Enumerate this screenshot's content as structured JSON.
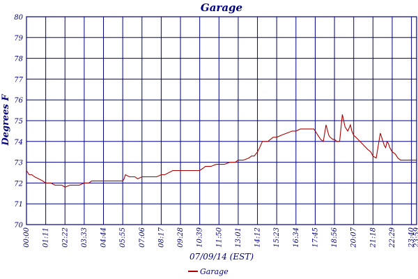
{
  "chart_data": {
    "type": "line",
    "title": "Garage",
    "xlabel": "07/09/14 (EST)",
    "ylabel": "Degrees F",
    "ylim": [
      70,
      80
    ],
    "yticks": [
      "70",
      "71",
      "72",
      "73",
      "74",
      "75",
      "76",
      "77",
      "78",
      "79",
      "80"
    ],
    "xticks": [
      "00:00",
      "01:11",
      "02:22",
      "03:33",
      "04:44",
      "05:55",
      "07:06",
      "08:17",
      "09:28",
      "10:39",
      "11:50",
      "13:01",
      "14:12",
      "15:23",
      "16:34",
      "17:45",
      "18:56",
      "20:07",
      "21:18",
      "22:29",
      "23:40",
      "23:59"
    ],
    "grid": true,
    "legend_position": "bottom-center",
    "colors": {
      "series": "#aa0000",
      "axes": "#000080"
    },
    "series": [
      {
        "name": "Garage",
        "x": [
          "00:00",
          "00:10",
          "00:20",
          "00:30",
          "00:45",
          "01:00",
          "01:11",
          "01:30",
          "01:45",
          "02:00",
          "02:10",
          "02:22",
          "02:40",
          "03:00",
          "03:15",
          "03:33",
          "03:50",
          "04:00",
          "04:20",
          "04:44",
          "05:00",
          "05:20",
          "05:40",
          "05:55",
          "06:00",
          "06:05",
          "06:20",
          "06:40",
          "06:50",
          "07:06",
          "07:20",
          "07:40",
          "08:00",
          "08:17",
          "08:30",
          "08:45",
          "09:00",
          "09:10",
          "09:28",
          "09:40",
          "10:00",
          "10:20",
          "10:39",
          "10:50",
          "11:00",
          "11:20",
          "11:40",
          "11:50",
          "12:10",
          "12:30",
          "12:50",
          "13:01",
          "13:20",
          "13:40",
          "13:50",
          "14:00",
          "14:12",
          "14:20",
          "14:30",
          "14:40",
          "14:50",
          "15:00",
          "15:10",
          "15:23",
          "15:40",
          "16:00",
          "16:20",
          "16:34",
          "16:50",
          "17:00",
          "17:20",
          "17:40",
          "17:45",
          "17:55",
          "18:05",
          "18:15",
          "18:25",
          "18:35",
          "18:40",
          "18:50",
          "18:56",
          "19:05",
          "19:15",
          "19:25",
          "19:35",
          "19:45",
          "19:55",
          "20:00",
          "20:07",
          "20:15",
          "20:30",
          "20:45",
          "21:00",
          "21:10",
          "21:18",
          "21:30",
          "21:45",
          "22:00",
          "22:05",
          "22:10",
          "22:15",
          "22:20",
          "22:29",
          "22:40",
          "22:50",
          "23:00",
          "23:10",
          "23:20",
          "23:30",
          "23:40",
          "23:59"
        ],
        "y": [
          72.6,
          72.4,
          72.4,
          72.3,
          72.2,
          72.1,
          72.0,
          72.0,
          71.9,
          71.9,
          71.9,
          71.8,
          71.9,
          71.9,
          71.9,
          72.0,
          72.0,
          72.1,
          72.1,
          72.1,
          72.1,
          72.1,
          72.1,
          72.1,
          72.2,
          72.4,
          72.3,
          72.3,
          72.2,
          72.3,
          72.3,
          72.3,
          72.3,
          72.4,
          72.4,
          72.5,
          72.6,
          72.6,
          72.6,
          72.6,
          72.6,
          72.6,
          72.6,
          72.7,
          72.8,
          72.8,
          72.9,
          72.9,
          72.9,
          73.0,
          73.0,
          73.1,
          73.1,
          73.2,
          73.3,
          73.3,
          73.5,
          73.7,
          74.0,
          74.0,
          74.0,
          74.1,
          74.2,
          74.2,
          74.3,
          74.4,
          74.5,
          74.5,
          74.6,
          74.6,
          74.6,
          74.6,
          74.5,
          74.3,
          74.1,
          74.0,
          74.8,
          74.3,
          74.2,
          74.1,
          74.1,
          74.0,
          74.0,
          75.3,
          74.7,
          74.5,
          74.8,
          74.5,
          74.3,
          74.2,
          74.0,
          73.8,
          73.6,
          73.5,
          73.3,
          73.2,
          74.4,
          73.8,
          73.7,
          74.0,
          73.9,
          73.7,
          73.5,
          73.4,
          73.2,
          73.1,
          73.1,
          73.1,
          73.1,
          73.1,
          73.1
        ]
      }
    ]
  }
}
